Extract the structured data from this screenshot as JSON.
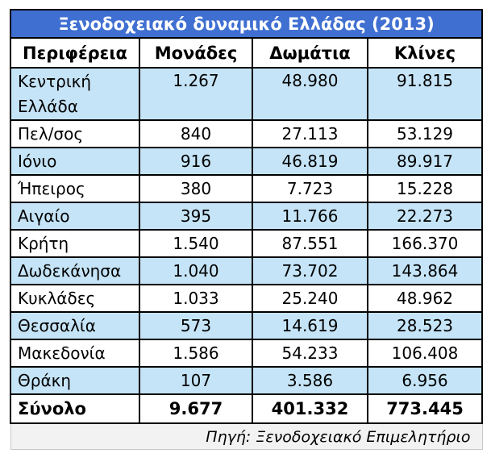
{
  "title": "Ξενοδοχειακό δυναμικό Ελλάδας (2013)",
  "columns": [
    "Περιφέρεια",
    "Μονάδες",
    "Δωμάτια",
    "Κλίνες"
  ],
  "rows": [
    {
      "region": "Κεντρική Ελλάδα",
      "units": "1.267",
      "rooms": "48.980",
      "beds": "91.815"
    },
    {
      "region": "Πελ/σος",
      "units": "840",
      "rooms": "27.113",
      "beds": "53.129"
    },
    {
      "region": "Ιόνιο",
      "units": "916",
      "rooms": "46.819",
      "beds": "89.917"
    },
    {
      "region": "Ήπειρος",
      "units": "380",
      "rooms": "7.723",
      "beds": "15.228"
    },
    {
      "region": "Αιγαίο",
      "units": "395",
      "rooms": "11.766",
      "beds": "22.273"
    },
    {
      "region": "Κρήτη",
      "units": "1.540",
      "rooms": "87.551",
      "beds": "166.370"
    },
    {
      "region": "Δωδεκάνησα",
      "units": "1.040",
      "rooms": "73.702",
      "beds": "143.864"
    },
    {
      "region": "Κυκλάδες",
      "units": "1.033",
      "rooms": "25.240",
      "beds": "48.962"
    },
    {
      "region": "Θεσσαλία",
      "units": "573",
      "rooms": "14.619",
      "beds": "28.523"
    },
    {
      "region": "Μακεδονία",
      "units": "1.586",
      "rooms": "54.233",
      "beds": "106.408"
    },
    {
      "region": "Θράκη",
      "units": "107",
      "rooms": "3.586",
      "beds": "6.956"
    }
  ],
  "total": {
    "label": "Σύνολο",
    "units": "9.677",
    "rooms": "401.332",
    "beds": "773.445"
  },
  "source": "Πηγή: Ξενοδοχειακό Επιμελητήριο",
  "colors": {
    "title_bg": "#3f6fd1",
    "band_bg": "#c5e4f7",
    "source_bg": "#f2f2f2"
  }
}
